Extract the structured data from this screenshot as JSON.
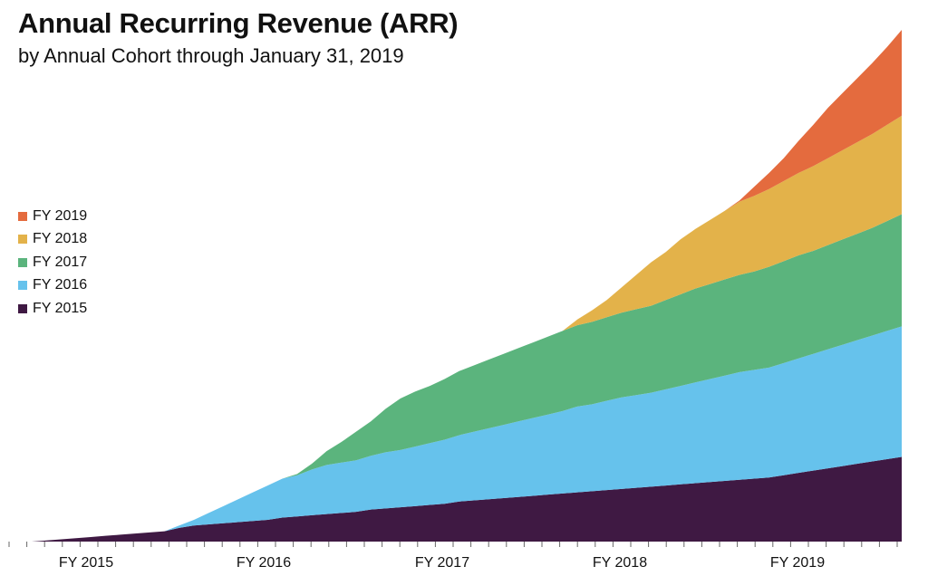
{
  "chart_data": {
    "type": "area",
    "stacked": true,
    "title": "Annual Recurring Revenue (ARR)",
    "subtitle": "by Annual Cohort through January 31, 2019",
    "xlabel": "",
    "ylabel": "",
    "grid": false,
    "legend_position": "left",
    "x_ticks": [
      "FY 2015",
      "FY 2016",
      "FY 2017",
      "FY 2018",
      "FY 2019"
    ],
    "x": [
      1,
      2,
      3,
      4,
      5,
      6,
      7,
      8,
      9,
      10,
      11,
      12,
      13,
      14,
      15,
      16,
      17,
      18,
      19,
      20,
      21,
      22,
      23,
      24,
      25,
      26,
      27,
      28,
      29,
      30,
      31,
      32,
      33,
      34,
      35,
      36,
      37,
      38,
      39,
      40,
      41,
      42,
      43,
      44,
      45,
      46,
      47,
      48,
      49,
      50,
      51,
      52,
      53,
      54,
      55,
      56,
      57,
      58,
      59,
      60
    ],
    "series": [
      {
        "name": "FY 2015",
        "color": "#3f1943",
        "values": [
          0,
          1,
          2,
          3,
          4,
          5,
          6,
          7,
          8,
          9,
          12,
          14,
          15,
          16,
          17,
          18,
          19,
          21,
          22,
          23,
          24,
          25,
          26,
          28,
          29,
          30,
          31,
          32,
          33,
          35,
          36,
          37,
          38,
          39,
          40,
          41,
          42,
          43,
          44,
          45,
          46,
          47,
          48,
          49,
          50,
          51,
          52,
          53,
          54,
          55,
          56,
          58,
          60,
          62,
          64,
          66,
          68,
          70,
          72,
          74
        ]
      },
      {
        "name": "FY 2016",
        "color": "#66c2ec",
        "values": [
          0,
          0,
          0,
          0,
          0,
          0,
          0,
          0,
          0,
          0,
          2,
          5,
          10,
          15,
          20,
          25,
          30,
          34,
          36,
          40,
          43,
          44,
          45,
          47,
          49,
          50,
          52,
          54,
          56,
          58,
          60,
          62,
          64,
          66,
          68,
          70,
          72,
          75,
          76,
          78,
          80,
          81,
          82,
          84,
          86,
          88,
          90,
          92,
          94,
          95,
          96,
          98,
          100,
          102,
          104,
          106,
          108,
          110,
          112,
          114
        ]
      },
      {
        "name": "FY 2017",
        "color": "#5bb47d",
        "values": [
          0,
          0,
          0,
          0,
          0,
          0,
          0,
          0,
          0,
          0,
          0,
          0,
          0,
          0,
          0,
          0,
          0,
          0,
          1,
          5,
          12,
          18,
          25,
          30,
          38,
          45,
          48,
          50,
          53,
          56,
          58,
          60,
          62,
          64,
          66,
          68,
          70,
          71,
          72,
          73,
          74,
          75,
          76,
          78,
          80,
          82,
          83,
          84,
          85,
          86,
          88,
          89,
          90,
          90,
          91,
          92,
          93,
          94,
          96,
          98
        ]
      },
      {
        "name": "FY 2018",
        "color": "#e3b24a",
        "values": [
          0,
          0,
          0,
          0,
          0,
          0,
          0,
          0,
          0,
          0,
          0,
          0,
          0,
          0,
          0,
          0,
          0,
          0,
          0,
          0,
          0,
          0,
          0,
          0,
          0,
          0,
          0,
          0,
          0,
          0,
          0,
          0,
          0,
          0,
          0,
          0,
          0,
          5,
          10,
          15,
          22,
          30,
          38,
          42,
          48,
          52,
          56,
          60,
          64,
          66,
          68,
          70,
          72,
          74,
          76,
          78,
          80,
          82,
          84,
          86
        ]
      },
      {
        "name": "FY 2019",
        "color": "#e46b3e",
        "values": [
          0,
          0,
          0,
          0,
          0,
          0,
          0,
          0,
          0,
          0,
          0,
          0,
          0,
          0,
          0,
          0,
          0,
          0,
          0,
          0,
          0,
          0,
          0,
          0,
          0,
          0,
          0,
          0,
          0,
          0,
          0,
          0,
          0,
          0,
          0,
          0,
          0,
          0,
          0,
          0,
          0,
          0,
          0,
          0,
          0,
          0,
          0,
          0,
          1,
          8,
          14,
          20,
          28,
          36,
          44,
          50,
          56,
          62,
          68,
          75
        ]
      }
    ]
  }
}
